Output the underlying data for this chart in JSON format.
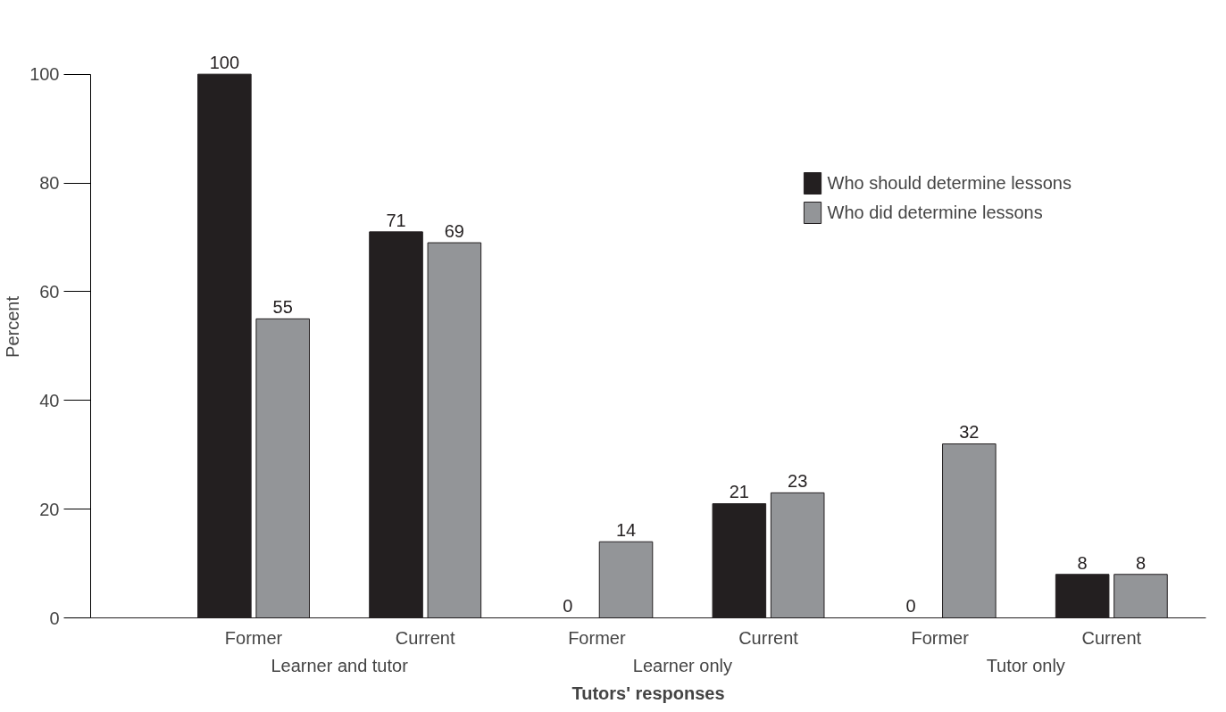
{
  "chart_data": {
    "type": "bar",
    "xlabel": "Tutors' responses",
    "ylabel": "Percent",
    "categories": [
      "Former",
      "Current",
      "Former",
      "Current",
      "Former",
      "Current"
    ],
    "annotations": [
      "Learner and tutor",
      "Learner only",
      "Tutor only"
    ],
    "series": [
      {
        "name": "Who should determine lessons",
        "color": "#231f20",
        "values": [
          100,
          71,
          0,
          21,
          0,
          8
        ]
      },
      {
        "name": "Who did determine lessons",
        "color": "#939598",
        "values": [
          55,
          69,
          14,
          23,
          32,
          8
        ]
      }
    ],
    "ylim": [
      0,
      100
    ],
    "yticks": [
      0,
      20,
      40,
      60,
      80,
      100
    ],
    "data_labels": true,
    "grid": false,
    "legend": "top right"
  }
}
